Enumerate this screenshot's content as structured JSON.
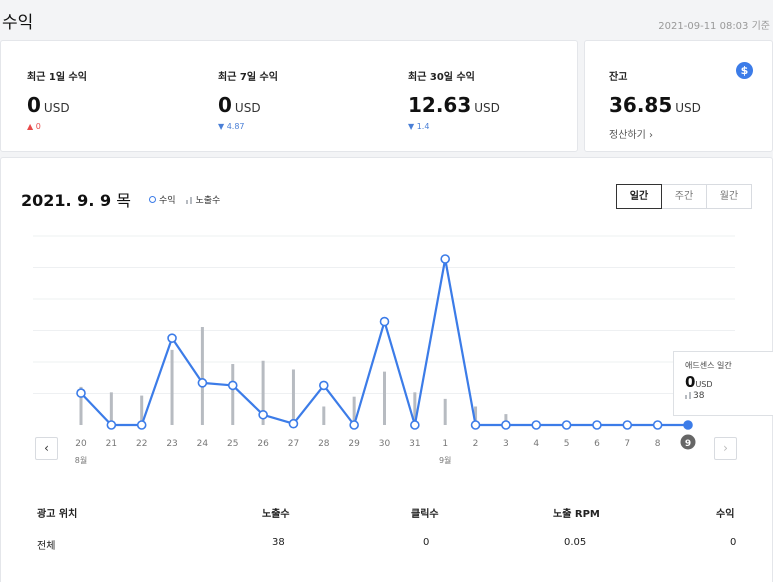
{
  "page_title": "수익",
  "updated": "2021-09-11 08:03 기준",
  "stats": [
    {
      "label": "최근 1일 수익",
      "value": "0",
      "unit": "USD",
      "delta": "0",
      "dir": "up"
    },
    {
      "label": "최근 7일 수익",
      "value": "0",
      "unit": "USD",
      "delta": "4.87",
      "dir": "down"
    },
    {
      "label": "최근 30일 수익",
      "value": "12.63",
      "unit": "USD",
      "delta": "1.4",
      "dir": "down"
    }
  ],
  "balance": {
    "label": "잔고",
    "value": "36.85",
    "unit": "USD",
    "link": "정산하기",
    "link_arrow": "›",
    "icon": "dollar-icon"
  },
  "chart_header": {
    "date": "2021. 9. 9",
    "weekday": "목",
    "legend_revenue": "수익",
    "legend_impressions": "노출수"
  },
  "period_tabs": [
    {
      "label": "일간",
      "active": true
    },
    {
      "label": "주간",
      "active": false
    },
    {
      "label": "월간",
      "active": false
    }
  ],
  "nav": {
    "prev": "‹",
    "next": "›"
  },
  "colors": {
    "line": "#3c7ce8",
    "bar": "#b7bbc1",
    "selected_label": "#666666"
  },
  "chart_data": {
    "type": "line",
    "x": [
      "20",
      "21",
      "22",
      "23",
      "24",
      "25",
      "26",
      "27",
      "28",
      "29",
      "30",
      "31",
      "1",
      "2",
      "3",
      "4",
      "5",
      "6",
      "7",
      "8",
      "9"
    ],
    "month_labels": [
      {
        "index": 0,
        "label": "8월"
      },
      {
        "index": 12,
        "label": "9월"
      }
    ],
    "selected_index": 20,
    "series": [
      {
        "name": "수익",
        "kind": "line",
        "values": [
          0.25,
          0,
          0,
          0.68,
          0.33,
          0.31,
          0.08,
          0.01,
          0.31,
          0,
          0.81,
          0,
          1.3,
          0,
          0,
          0,
          0,
          0,
          0,
          0,
          0
        ]
      },
      {
        "name": "노출수",
        "kind": "bar",
        "values": [
          350,
          300,
          270,
          690,
          900,
          560,
          590,
          510,
          170,
          260,
          490,
          300,
          240,
          170,
          100,
          0,
          0,
          0,
          0,
          0,
          38
        ]
      }
    ],
    "grid": true
  },
  "tooltip": {
    "title": "애드센스 일간",
    "value": "0",
    "unit": "USD",
    "impressions": "38"
  },
  "table": {
    "headers": [
      "광고 위치",
      "노출수",
      "클릭수",
      "노출 RPM",
      "수익"
    ],
    "rows": [
      [
        "전체",
        "38",
        "0",
        "0.05",
        "0"
      ]
    ]
  }
}
